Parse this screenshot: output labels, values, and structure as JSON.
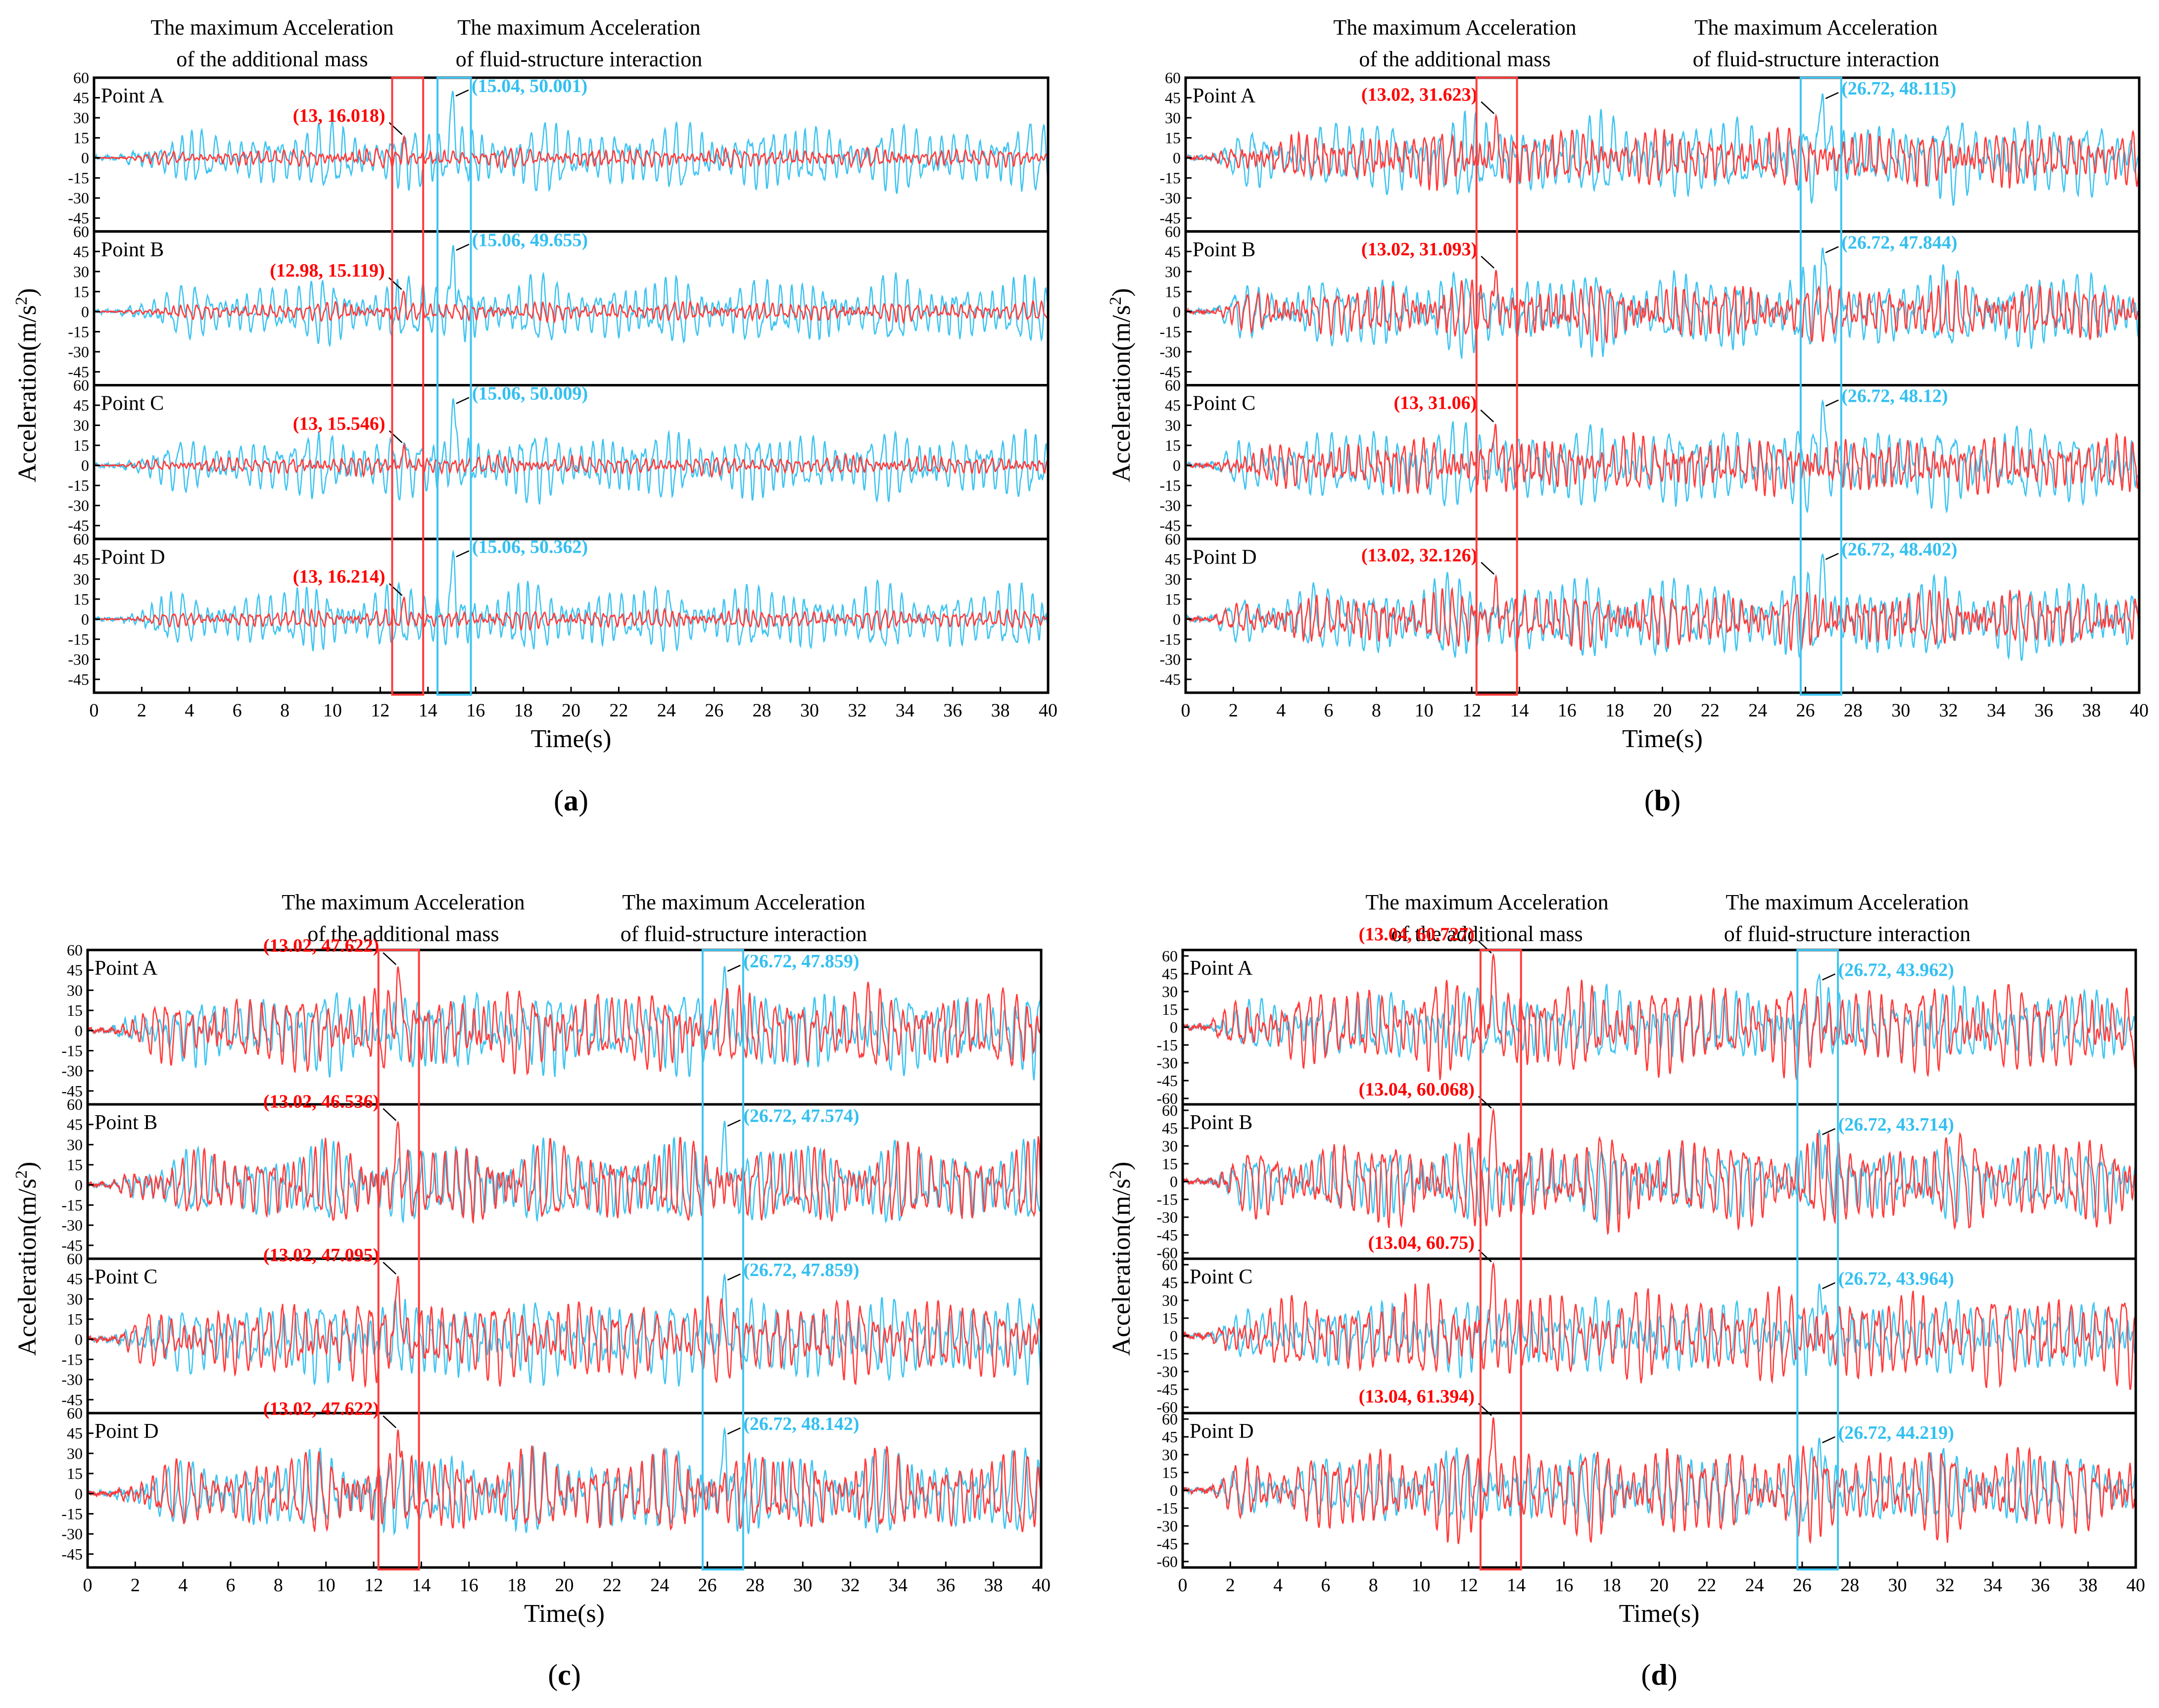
{
  "figure": {
    "colors": {
      "additional_mass": "#ff3b3b",
      "fluid_structure": "#40c4f0",
      "axis": "#000000",
      "label_red": "#ff0000",
      "label_blue": "#33c0f0"
    },
    "y_axis_label_prefix": "Acceleration(m/s",
    "y_axis_label_sup": "2",
    "y_axis_label_suffix": ")",
    "x_axis_label": "Time(s)",
    "header_mass_line1": "The maximum Acceleration",
    "header_mass_line2": "of the additional mass",
    "header_fsi_line1": "The maximum Acceleration",
    "header_fsi_line2": "of fluid-structure interaction"
  },
  "chart_data": [
    {
      "type": "line",
      "panel_label": "a",
      "xlabel": "Time(s)",
      "ylabel": "Acceleration(m/s2)",
      "xlim": [
        0,
        40
      ],
      "x_ticks": [
        0,
        2,
        4,
        6,
        8,
        10,
        12,
        14,
        16,
        18,
        20,
        22,
        24,
        26,
        28,
        30,
        32,
        34,
        36,
        38,
        40
      ],
      "ylim": [
        -55,
        60
      ],
      "y_ticks": [
        60,
        45,
        30,
        15,
        0,
        -15,
        -30,
        -45
      ],
      "mass_box_t": [
        12.5,
        13.8
      ],
      "fsi_box_t": [
        14.4,
        15.8
      ],
      "series_styles": {
        "additional_mass": {
          "base": 5,
          "peak": 10,
          "period": 0.36
        },
        "fluid_structure": {
          "base": 18,
          "peak": 36,
          "period": 0.5
        }
      },
      "subplots": [
        {
          "name": "Point A",
          "mass_max": {
            "t": 13,
            "a": 16.018,
            "label": "(13, 16.018)"
          },
          "fsi_max": {
            "t": 15.04,
            "a": 50.001,
            "label": "(15.04, 50.001)"
          }
        },
        {
          "name": "Point B",
          "mass_max": {
            "t": 12.98,
            "a": 15.119,
            "label": "(12.98, 15.119)"
          },
          "fsi_max": {
            "t": 15.06,
            "a": 49.655,
            "label": "(15.06, 49.655)"
          }
        },
        {
          "name": "Point C",
          "mass_max": {
            "t": 13,
            "a": 15.546,
            "label": "(13, 15.546)"
          },
          "fsi_max": {
            "t": 15.06,
            "a": 50.009,
            "label": "(15.06, 50.009)"
          }
        },
        {
          "name": "Point D",
          "mass_max": {
            "t": 13,
            "a": 16.214,
            "label": "(13, 16.214)"
          },
          "fsi_max": {
            "t": 15.06,
            "a": 50.362,
            "label": "(15.06, 50.362)"
          }
        }
      ]
    },
    {
      "type": "line",
      "panel_label": "b",
      "xlabel": "Time(s)",
      "ylabel": "Acceleration(m/s2)",
      "xlim": [
        0,
        40
      ],
      "x_ticks": [
        0,
        2,
        4,
        6,
        8,
        10,
        12,
        14,
        16,
        18,
        20,
        22,
        24,
        26,
        28,
        30,
        32,
        34,
        36,
        38,
        40
      ],
      "ylim": [
        -55,
        60
      ],
      "y_ticks": [
        60,
        45,
        30,
        15,
        0,
        -15,
        -30,
        -45
      ],
      "mass_box_t": [
        12.2,
        13.9
      ],
      "fsi_box_t": [
        25.8,
        27.5
      ],
      "series_styles": {
        "additional_mass": {
          "base": 15,
          "peak": 31,
          "period": 0.4
        },
        "fluid_structure": {
          "base": 22,
          "peak": 48,
          "period": 0.55
        }
      },
      "subplots": [
        {
          "name": "Point A",
          "mass_max": {
            "t": 13.02,
            "a": 31.623,
            "label": "(13.02, 31.623)"
          },
          "fsi_max": {
            "t": 26.72,
            "a": 48.115,
            "label": "(26.72, 48.115)"
          }
        },
        {
          "name": "Point B",
          "mass_max": {
            "t": 13.02,
            "a": 31.093,
            "label": "(13.02, 31.093)"
          },
          "fsi_max": {
            "t": 26.72,
            "a": 47.844,
            "label": "(26.72, 47.844)"
          }
        },
        {
          "name": "Point C",
          "mass_max": {
            "t": 13,
            "a": 31.06,
            "label": "(13, 31.06)"
          },
          "fsi_max": {
            "t": 26.72,
            "a": 48.12,
            "label": "(26.72, 48.12)"
          }
        },
        {
          "name": "Point D",
          "mass_max": {
            "t": 13.02,
            "a": 32.126,
            "label": "(13.02, 32.126)"
          },
          "fsi_max": {
            "t": 26.72,
            "a": 48.402,
            "label": "(26.72, 48.402)"
          }
        }
      ]
    },
    {
      "type": "line",
      "panel_label": "c",
      "xlabel": "Time(s)",
      "ylabel": "Acceleration(m/s2)",
      "xlim": [
        0,
        40
      ],
      "x_ticks": [
        0,
        2,
        4,
        6,
        8,
        10,
        12,
        14,
        16,
        18,
        20,
        22,
        24,
        26,
        28,
        30,
        32,
        34,
        36,
        38,
        40
      ],
      "ylim": [
        -55,
        60
      ],
      "y_ticks": [
        60,
        45,
        30,
        15,
        0,
        -15,
        -30,
        -45
      ],
      "mass_box_t": [
        12.2,
        13.9
      ],
      "fsi_box_t": [
        25.8,
        27.5
      ],
      "series_styles": {
        "additional_mass": {
          "base": 22,
          "peak": 47,
          "period": 0.5
        },
        "fluid_structure": {
          "base": 22,
          "peak": 48,
          "period": 0.5
        }
      },
      "subplots": [
        {
          "name": "Point A",
          "mass_max": {
            "t": 13.02,
            "a": 47.622,
            "label": "(13.02, 47.622)"
          },
          "fsi_max": {
            "t": 26.72,
            "a": 47.859,
            "label": "(26.72, 47.859)"
          }
        },
        {
          "name": "Point B",
          "mass_max": {
            "t": 13.02,
            "a": 46.536,
            "label": "(13.02, 46.536)"
          },
          "fsi_max": {
            "t": 26.72,
            "a": 47.574,
            "label": "(26.72, 47.574)"
          }
        },
        {
          "name": "Point C",
          "mass_max": {
            "t": 13.02,
            "a": 47.095,
            "label": "(13.02, 47.095)"
          },
          "fsi_max": {
            "t": 26.72,
            "a": 47.859,
            "label": "(26.72, 47.859)"
          }
        },
        {
          "name": "Point D",
          "mass_max": {
            "t": 13.02,
            "a": 47.622,
            "label": "(13.02, 47.622)"
          },
          "fsi_max": {
            "t": 26.72,
            "a": 48.142,
            "label": "(26.72, 48.142)"
          }
        }
      ]
    },
    {
      "type": "line",
      "panel_label": "d",
      "xlabel": "Time(s)",
      "ylabel": "Acceleration(m/s2)",
      "xlim": [
        0,
        40
      ],
      "x_ticks": [
        0,
        2,
        4,
        6,
        8,
        10,
        12,
        14,
        16,
        18,
        20,
        22,
        24,
        26,
        28,
        30,
        32,
        34,
        36,
        38,
        40
      ],
      "ylim": [
        -65,
        65
      ],
      "y_ticks": [
        60,
        45,
        30,
        15,
        0,
        -15,
        -30,
        -45,
        -60
      ],
      "mass_box_t": [
        12.5,
        14.2
      ],
      "fsi_box_t": [
        25.8,
        27.5
      ],
      "series_styles": {
        "additional_mass": {
          "base": 28,
          "peak": 60,
          "period": 0.52
        },
        "fluid_structure": {
          "base": 22,
          "peak": 44,
          "period": 0.5
        }
      },
      "subplots": [
        {
          "name": "Point A",
          "mass_max": {
            "t": 13.04,
            "a": 60.727,
            "label": "(13.04, 60.727)"
          },
          "fsi_max": {
            "t": 26.72,
            "a": 43.962,
            "label": "(26.72, 43.962)"
          }
        },
        {
          "name": "Point B",
          "mass_max": {
            "t": 13.04,
            "a": 60.068,
            "label": "(13.04, 60.068)"
          },
          "fsi_max": {
            "t": 26.72,
            "a": 43.714,
            "label": "(26.72, 43.714)"
          }
        },
        {
          "name": "Point C",
          "mass_max": {
            "t": 13.04,
            "a": 60.75,
            "label": "(13.04, 60.75)"
          },
          "fsi_max": {
            "t": 26.72,
            "a": 43.964,
            "label": "(26.72, 43.964)"
          }
        },
        {
          "name": "Point D",
          "mass_max": {
            "t": 13.04,
            "a": 61.394,
            "label": "(13.04, 61.394)"
          },
          "fsi_max": {
            "t": 26.72,
            "a": 44.219,
            "label": "(26.72, 44.219)"
          }
        }
      ]
    }
  ]
}
